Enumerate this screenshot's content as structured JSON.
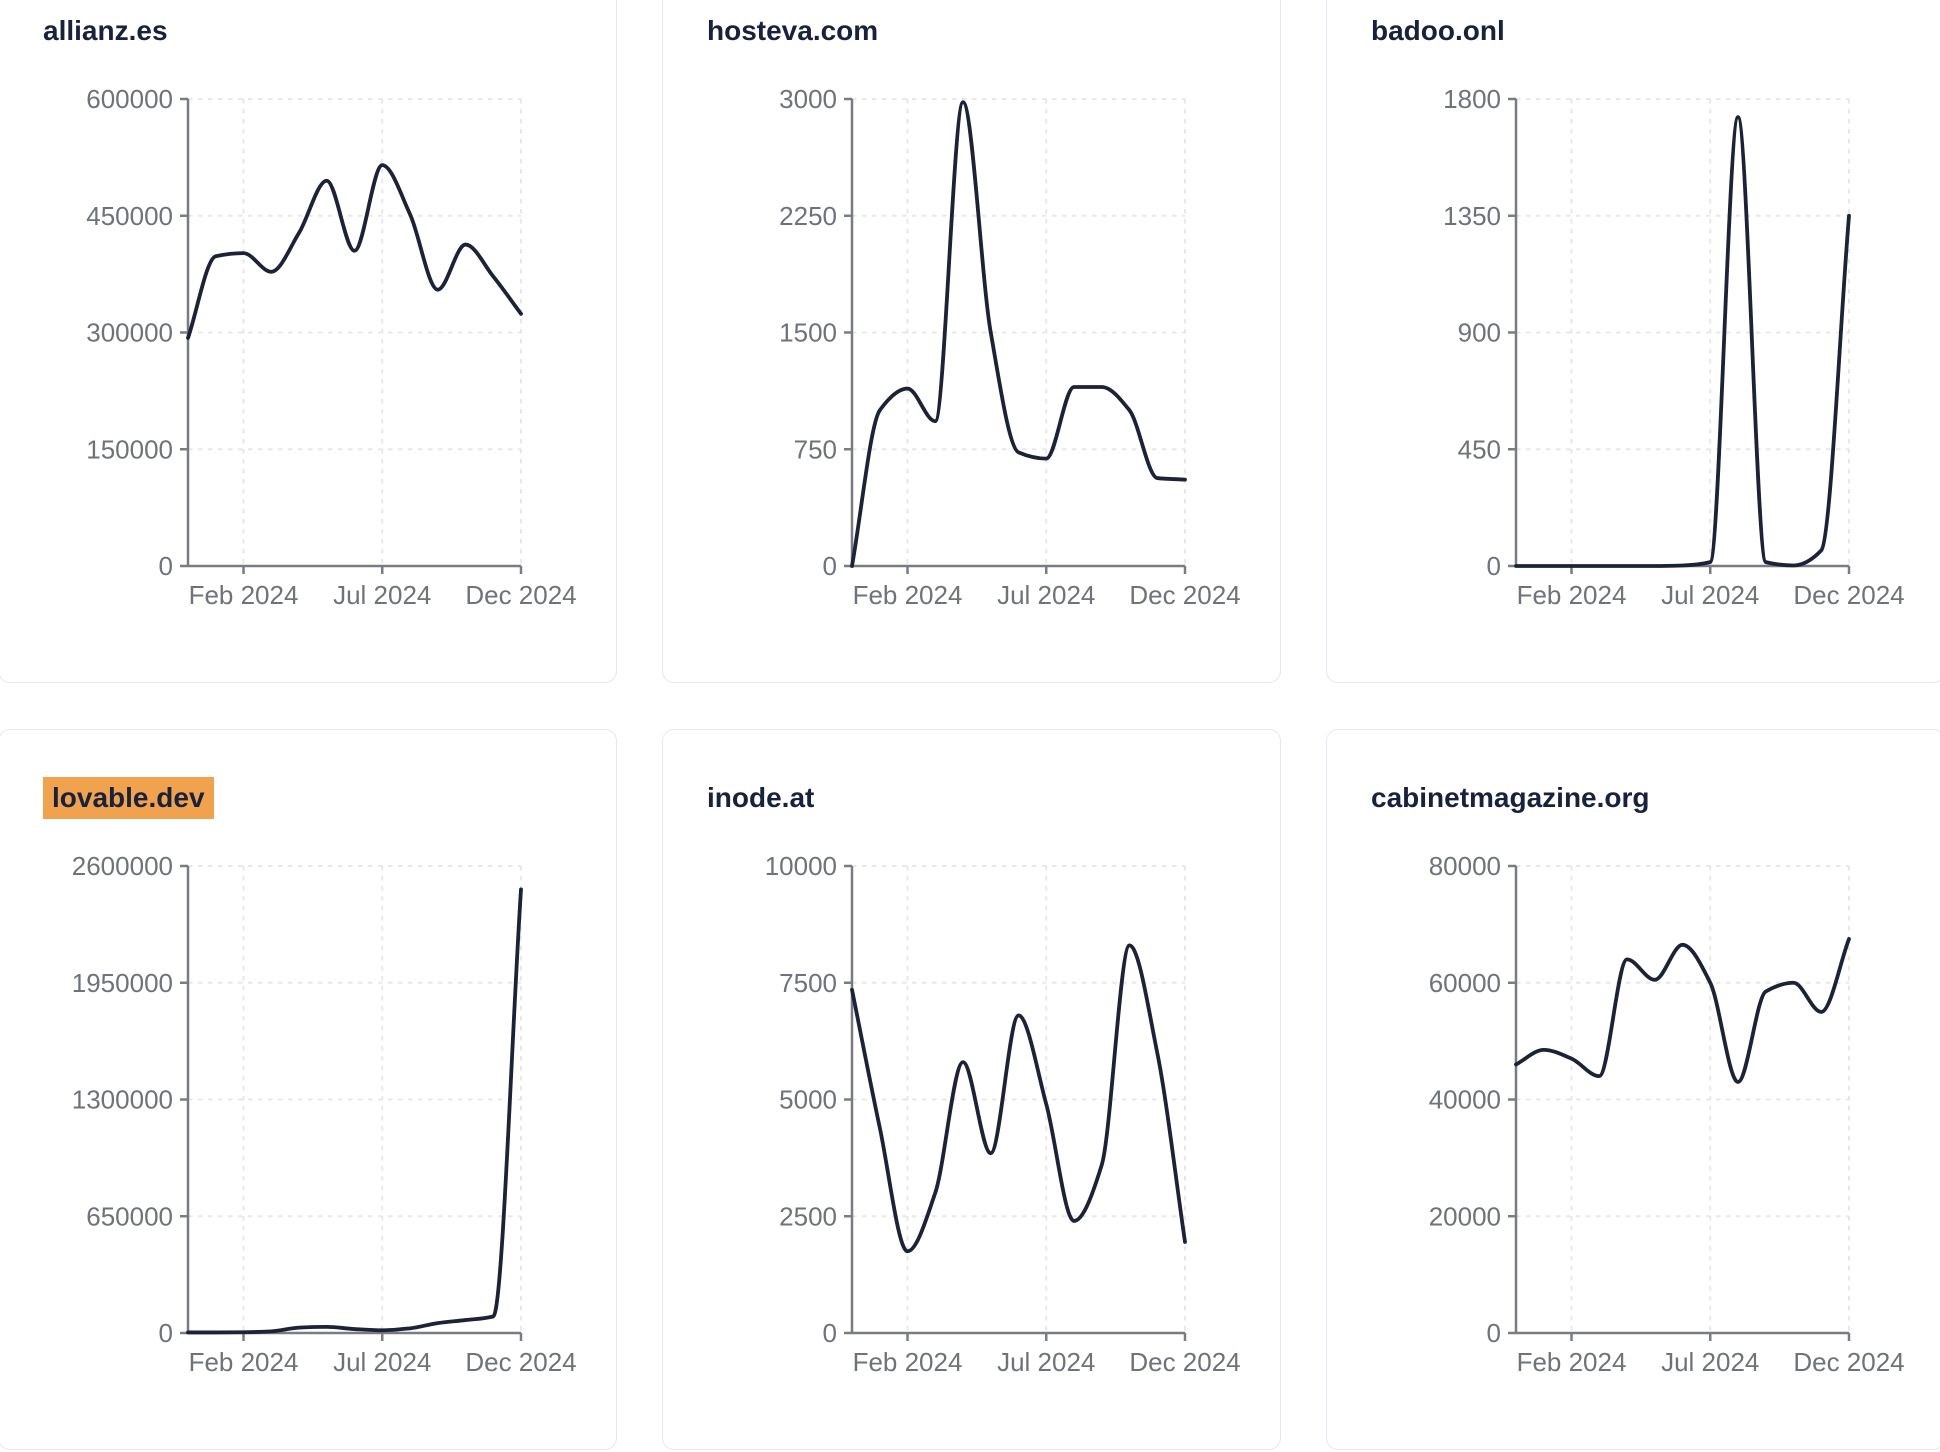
{
  "style": {
    "page_background": "#ffffff",
    "card_background": "#ffffff",
    "card_border_color": "#e3e8f0",
    "title_color": "#18223c",
    "highlight_color": "#f0a24e",
    "line_color": "#1c2337",
    "axis_color": "#797d83",
    "grid_color": "#e8e8ea",
    "tick_label_color": "#6e727a"
  },
  "x_axis": {
    "months": [
      "Dec 2023",
      "Jan 2024",
      "Feb 2024",
      "Mar 2024",
      "Apr 2024",
      "May 2024",
      "Jun 2024",
      "Jul 2024",
      "Aug 2024",
      "Sep 2024",
      "Oct 2024",
      "Nov 2024",
      "Dec 2024"
    ],
    "ticks": [
      {
        "label": "Feb 2024",
        "pos": 0.16667
      },
      {
        "label": "Jul 2024",
        "pos": 0.58333
      },
      {
        "label": "Dec 2024",
        "pos": 1
      }
    ]
  },
  "chart_data": [
    {
      "type": "line",
      "title": "allianz.es",
      "highlighted": false,
      "ymax": 600000,
      "yticks": [
        0,
        150000,
        300000,
        450000,
        600000
      ],
      "x_range": "Dec 2023 to Dec 2024, monthly",
      "values": [
        293000,
        398000,
        402000,
        378000,
        428000,
        495000,
        405000,
        515000,
        452000,
        355000,
        413000,
        372000,
        324000
      ]
    },
    {
      "type": "line",
      "title": "hosteva.com",
      "highlighted": false,
      "ymax": 3000,
      "yticks": [
        0,
        750,
        1500,
        2250,
        3000
      ],
      "x_range": "Dec 2023 to Dec 2024, monthly",
      "values": [
        0,
        1000,
        1140,
        930,
        2980,
        1500,
        730,
        690,
        1150,
        1150,
        1000,
        565,
        555
      ]
    },
    {
      "type": "line",
      "title": "badoo.onl",
      "highlighted": false,
      "ymax": 1800,
      "yticks": [
        0,
        450,
        900,
        1350,
        1800
      ],
      "x_range": "Dec 2023 to Dec 2024, monthly",
      "values": [
        0,
        0,
        0,
        0,
        0,
        0,
        2,
        15,
        1730,
        15,
        2,
        60,
        1350
      ]
    },
    {
      "type": "line",
      "title": "lovable.dev",
      "highlighted": true,
      "ymax": 2600000,
      "yticks": [
        0,
        650000,
        1300000,
        1950000,
        2600000
      ],
      "x_range": "Dec 2023 to Dec 2024, monthly",
      "values": [
        3000,
        3000,
        4000,
        9000,
        30000,
        34000,
        22000,
        15000,
        26000,
        55000,
        72000,
        92000,
        2470000
      ]
    },
    {
      "type": "line",
      "title": "inode.at",
      "highlighted": false,
      "ymax": 10000,
      "yticks": [
        0,
        2500,
        5000,
        7500,
        10000
      ],
      "x_range": "Dec 2023 to Dec 2024, monthly",
      "values": [
        7350,
        4400,
        1750,
        3000,
        5800,
        3850,
        6800,
        4900,
        2400,
        3600,
        8300,
        6000,
        1950
      ]
    },
    {
      "type": "line",
      "title": "cabinetmagazine.org",
      "highlighted": false,
      "ymax": 80000,
      "yticks": [
        0,
        20000,
        40000,
        60000,
        80000
      ],
      "x_range": "Dec 2023 to Dec 2024, monthly",
      "values": [
        46000,
        48500,
        47000,
        44000,
        64000,
        60500,
        66500,
        60000,
        43000,
        58500,
        60000,
        55000,
        67500
      ]
    }
  ]
}
